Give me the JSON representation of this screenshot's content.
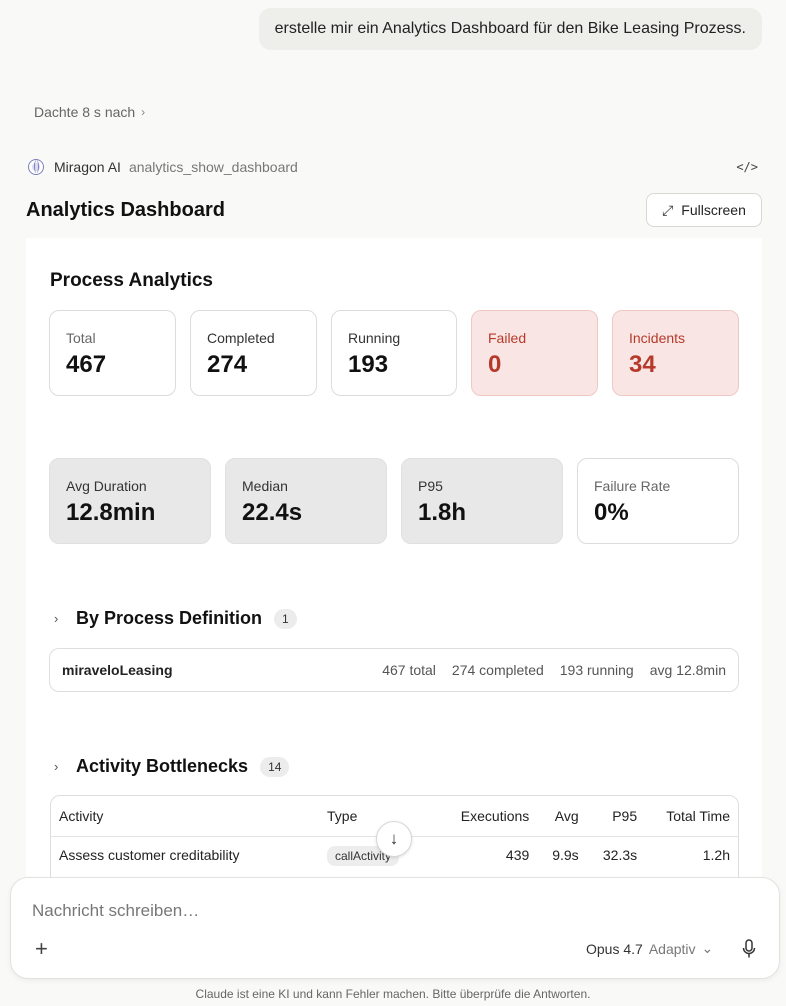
{
  "user_message": "erstelle mir ein Analytics Dashboard für den Bike Leasing Prozess.",
  "thought": {
    "label": "Dachte 8 s nach"
  },
  "tool": {
    "name": "Miragon AI",
    "function": "analytics_show_dashboard",
    "code_icon": "</>"
  },
  "dashboard": {
    "title": "Analytics Dashboard",
    "fullscreen_label": "Fullscreen",
    "section_title": "Process Analytics",
    "counts": [
      {
        "label": "Total",
        "value": "467"
      },
      {
        "label": "Completed",
        "value": "274"
      },
      {
        "label": "Running",
        "value": "193"
      },
      {
        "label": "Failed",
        "value": "0"
      },
      {
        "label": "Incidents",
        "value": "34"
      }
    ],
    "durations": [
      {
        "label": "Avg Duration",
        "value": "12.8min"
      },
      {
        "label": "Median",
        "value": "22.4s"
      },
      {
        "label": "P95",
        "value": "1.8h"
      },
      {
        "label": "Failure Rate",
        "value": "0%"
      }
    ],
    "by_definition": {
      "title": "By Process Definition",
      "count": "1",
      "rows": [
        {
          "name": "miraveloLeasing",
          "total": "467 total",
          "completed": "274 completed",
          "running": "193 running",
          "avg": "avg 12.8min"
        }
      ]
    },
    "bottlenecks": {
      "title": "Activity Bottlenecks",
      "count": "14",
      "columns": [
        "Activity",
        "Type",
        "Executions",
        "Avg",
        "P95",
        "Total Time"
      ],
      "rows": [
        {
          "activity": "Assess customer creditability",
          "type": "callActivity",
          "executions": "439",
          "avg": "9.9s",
          "p95": "32.3s",
          "total": "1.2h"
        }
      ]
    }
  },
  "composer": {
    "placeholder": "Nachricht schreiben…",
    "model": "Opus 4.7",
    "mode": "Adaptiv"
  },
  "disclaimer": "Claude ist eine KI und kann Fehler machen. Bitte überprüfe die Antworten.",
  "colors": {
    "failed_bg": "#f9e6e4",
    "failed_text": "#b63a2b",
    "accent_grey": "#e8e8e8"
  }
}
